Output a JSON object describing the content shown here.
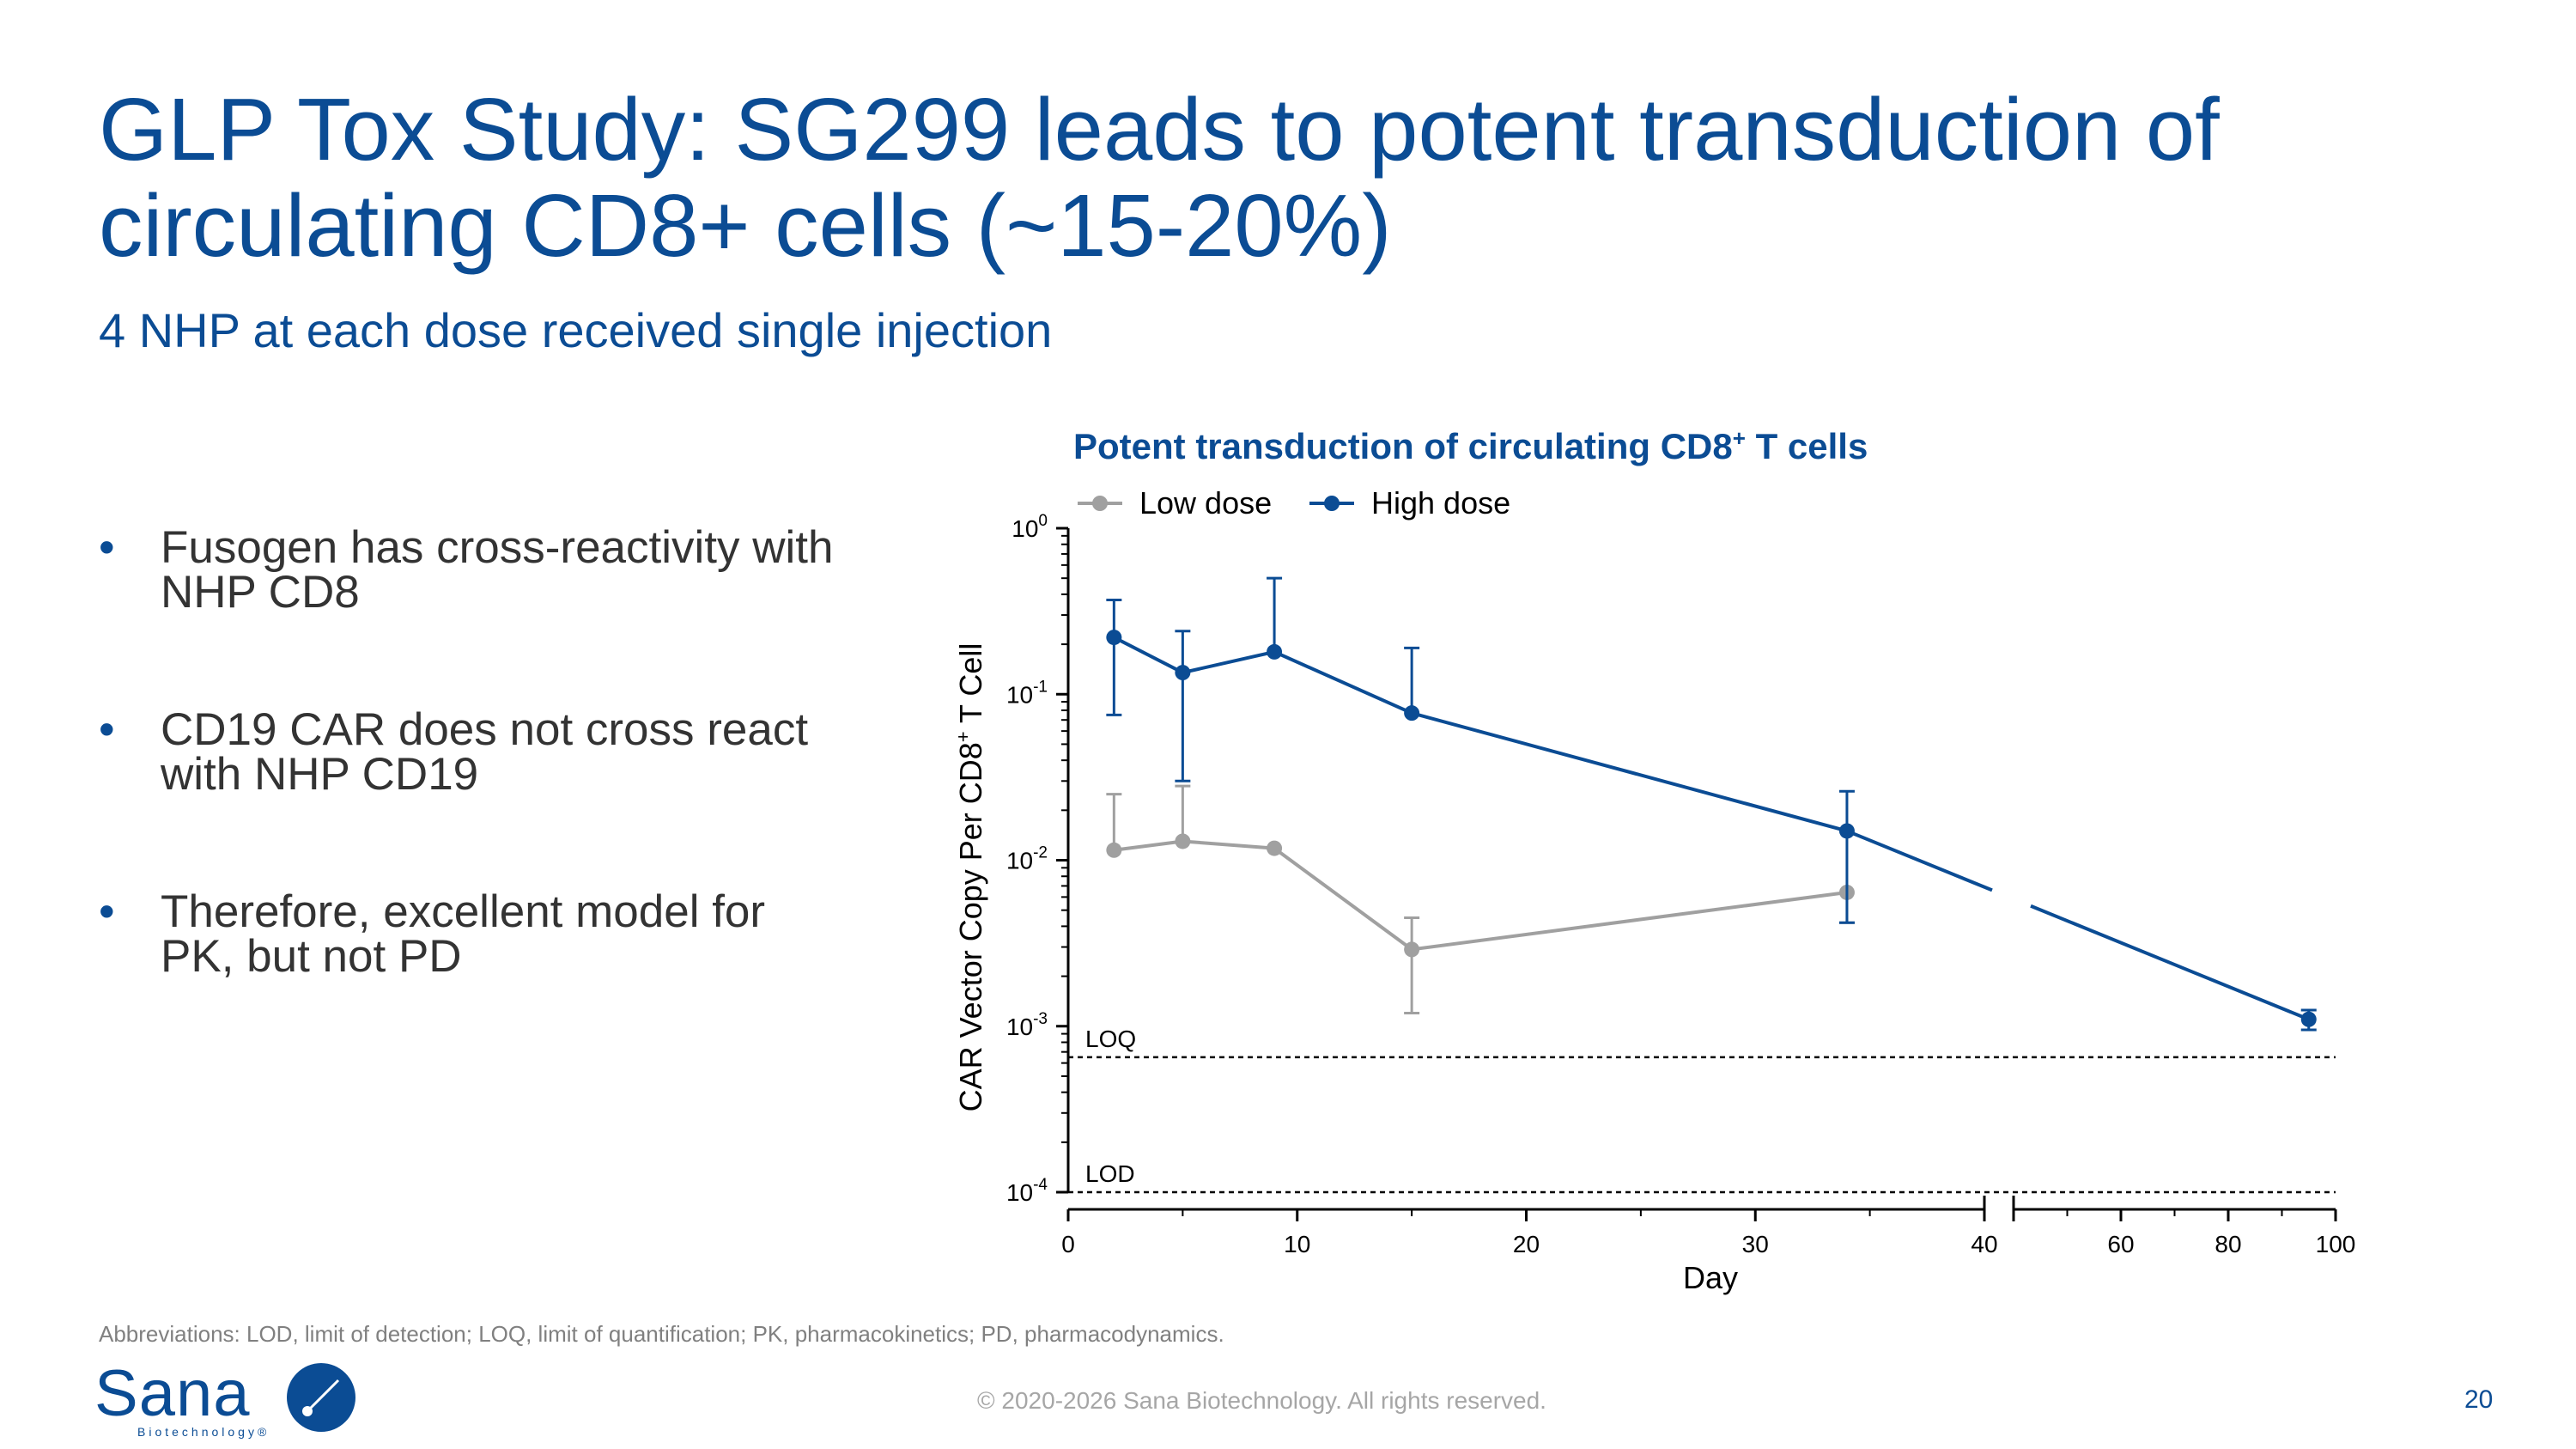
{
  "slide": {
    "title": "GLP Tox Study: SG299 leads to potent transduction of circulating CD8+ cells (~15-20%)",
    "subtitle": "4 NHP at each dose received single injection",
    "bullet_symbol": "•",
    "bullets": [
      "Fusogen has cross-reactivity with NHP CD8",
      "CD19 CAR does not cross react with NHP CD19",
      "Therefore, excellent model for PK, but not PD"
    ],
    "footnote": "Abbreviations: LOD, limit of detection; LOQ, limit of quantification; PK, pharmacokinetics; PD, pharmacodynamics.",
    "copyright": "© 2020-2026 Sana Biotechnology. All rights reserved.",
    "page_number": "20",
    "logo": {
      "word": "Sana",
      "sub": "Biotechnology®"
    }
  },
  "chart_data": {
    "type": "line",
    "title_main": "Potent transduction of circulating CD8",
    "title_sup": "+",
    "title_end": " T cells",
    "xlabel": "Day",
    "ylabel_main": "CAR Vector Copy Per CD8",
    "ylabel_sup": "+",
    "ylabel_end": " T Cell",
    "yscale": "log",
    "ylim": [
      0.0001,
      1
    ],
    "y_ticks": [
      {
        "value": 1,
        "base": "10",
        "exp": "0"
      },
      {
        "value": 0.1,
        "base": "10",
        "exp": "-1"
      },
      {
        "value": 0.01,
        "base": "10",
        "exp": "-2"
      },
      {
        "value": 0.001,
        "base": "10",
        "exp": "-3"
      },
      {
        "value": 0.0001,
        "base": "10",
        "exp": "-4"
      }
    ],
    "x_segments": [
      {
        "range": [
          0,
          40
        ],
        "ticks": [
          "0",
          "10",
          "20",
          "30",
          "40"
        ],
        "major": [
          0,
          10,
          20,
          30,
          40
        ],
        "minor": [
          5,
          15,
          25,
          35
        ]
      },
      {
        "range": [
          40,
          100
        ],
        "ticks": [
          "60",
          "80",
          "100"
        ],
        "major": [
          60,
          80,
          100
        ],
        "minor": [
          50,
          70,
          90
        ]
      }
    ],
    "x_tick_labels": [
      "0",
      "10",
      "20",
      "30",
      "40",
      "60",
      "80",
      "100"
    ],
    "reference_lines": [
      {
        "label": "LOQ",
        "y": 0.00065
      },
      {
        "label": "LOD",
        "y": 0.0001
      }
    ],
    "legend": {
      "placement": "top-left"
    },
    "series": [
      {
        "name": "Low dose",
        "color": "#a0a0a0",
        "points": [
          {
            "x": 2,
            "y": 0.0115,
            "hi": 0.025
          },
          {
            "x": 5,
            "y": 0.013,
            "hi": 0.028
          },
          {
            "x": 9,
            "y": 0.0118
          },
          {
            "x": 15,
            "y": 0.0029,
            "lo": 0.0012,
            "hi": 0.0045
          },
          {
            "x": 34,
            "y": 0.0064,
            "lo": 0.0042
          }
        ]
      },
      {
        "name": "High dose",
        "color": "#0b4c94",
        "points": [
          {
            "x": 2,
            "y": 0.22,
            "lo": 0.075,
            "hi": 0.37
          },
          {
            "x": 5,
            "y": 0.135,
            "lo": 0.03,
            "hi": 0.24
          },
          {
            "x": 9,
            "y": 0.18,
            "hi": 0.5
          },
          {
            "x": 15,
            "y": 0.077,
            "hi": 0.19
          },
          {
            "x": 34,
            "y": 0.015,
            "lo": 0.0042,
            "hi": 0.026
          },
          {
            "x": 95,
            "y": 0.0011,
            "lo": 0.00095,
            "hi": 0.00125
          }
        ]
      }
    ]
  }
}
